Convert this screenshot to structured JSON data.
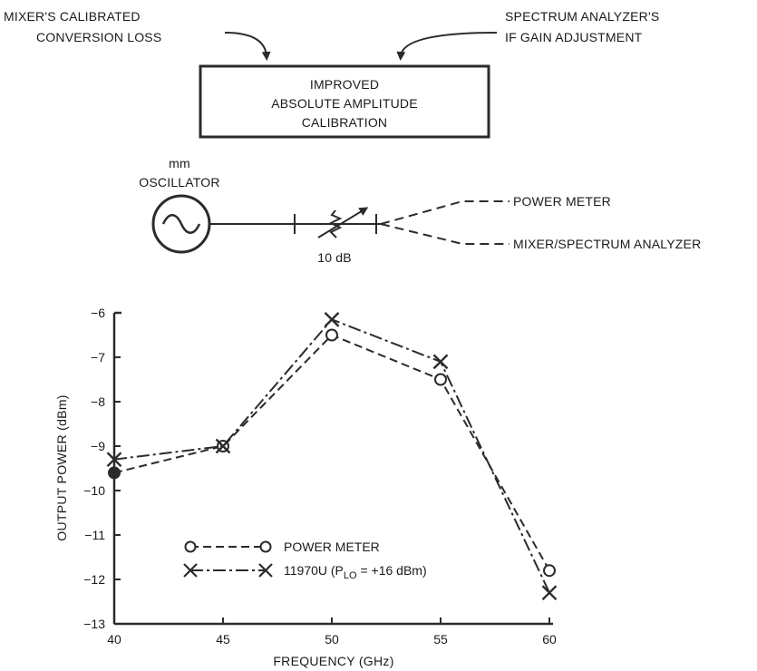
{
  "top_diagram": {
    "mixer_line1": "MIXER'S CALIBRATED",
    "mixer_line2": "CONVERSION LOSS",
    "sa_line1": "SPECTRUM ANALYZER'S",
    "sa_line2": "IF GAIN ADJUSTMENT",
    "box_line1": "IMPROVED",
    "box_line2": "ABSOLUTE AMPLITUDE",
    "box_line3": "CALIBRATION"
  },
  "setup_diagram": {
    "osc_line1": "mm",
    "osc_line2": "OSCILLATOR",
    "attenuator_label": "10 dB",
    "power_meter_label": "POWER METER",
    "mixer_sa_label": "MIXER/SPECTRUM ANALYZER"
  },
  "chart_data": {
    "type": "line",
    "xlabel": "FREQUENCY (GHz)",
    "ylabel": "OUTPUT POWER (dBm)",
    "x": [
      40,
      45,
      50,
      55,
      60
    ],
    "xlim": [
      40,
      60
    ],
    "ylim": [
      -13,
      -6
    ],
    "xticks": [
      "40",
      "45",
      "50",
      "55",
      "60"
    ],
    "yticks": [
      "-6",
      "-7",
      "-8",
      "-9",
      "-10",
      "-11",
      "-12",
      "-13"
    ],
    "grid": false,
    "legend_position": "lower-left",
    "series": [
      {
        "name": "POWER METER",
        "marker": "circle",
        "style": "dashed",
        "values": [
          -9.6,
          -9.0,
          -6.5,
          -7.5,
          -11.8
        ]
      },
      {
        "name": "11970U (P_LO = +16 dBm)",
        "marker": "x",
        "style": "dash-dot",
        "values": [
          -9.3,
          -9.0,
          -6.15,
          -7.1,
          -12.3
        ]
      }
    ],
    "legend": {
      "power_meter": "POWER METER",
      "mixer_prefix": "11970U (P",
      "mixer_sub": "LO",
      "mixer_suffix": " = +16 dBm)"
    }
  }
}
